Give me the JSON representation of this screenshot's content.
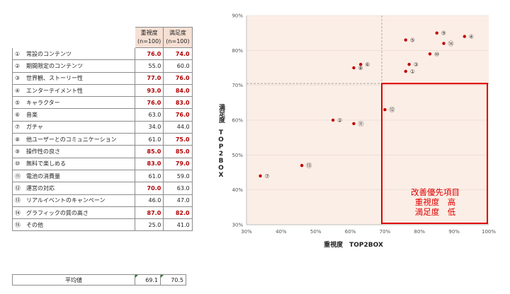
{
  "table": {
    "header": {
      "importance": "重視度",
      "importance_n": "(n=100)",
      "satisfaction": "満足度",
      "satisfaction_n": "(n=100)"
    },
    "rows": [
      {
        "no": "①",
        "label": "常設のコンテンツ",
        "importance": "76.0",
        "satisfaction": "74.0",
        "imp_hi": true,
        "sat_hi": true
      },
      {
        "no": "②",
        "label": "期間限定のコンテンツ",
        "importance": "55.0",
        "satisfaction": "60.0",
        "imp_hi": false,
        "sat_hi": false
      },
      {
        "no": "③",
        "label": "世界観、ストーリー性",
        "importance": "77.0",
        "satisfaction": "76.0",
        "imp_hi": true,
        "sat_hi": true
      },
      {
        "no": "④",
        "label": "エンターテイメント性",
        "importance": "93.0",
        "satisfaction": "84.0",
        "imp_hi": true,
        "sat_hi": true
      },
      {
        "no": "⑤",
        "label": "キャラクター",
        "importance": "76.0",
        "satisfaction": "83.0",
        "imp_hi": true,
        "sat_hi": true
      },
      {
        "no": "⑥",
        "label": "音楽",
        "importance": "63.0",
        "satisfaction": "76.0",
        "imp_hi": false,
        "sat_hi": true
      },
      {
        "no": "⑦",
        "label": "ガチャ",
        "importance": "34.0",
        "satisfaction": "44.0",
        "imp_hi": false,
        "sat_hi": false
      },
      {
        "no": "⑧",
        "label": "他ユーザーとのコミュニケーション",
        "importance": "61.0",
        "satisfaction": "75.0",
        "imp_hi": false,
        "sat_hi": true
      },
      {
        "no": "⑨",
        "label": "操作性の良さ",
        "importance": "85.0",
        "satisfaction": "85.0",
        "imp_hi": true,
        "sat_hi": true
      },
      {
        "no": "⑩",
        "label": "無料で楽しめる",
        "importance": "83.0",
        "satisfaction": "79.0",
        "imp_hi": true,
        "sat_hi": true
      },
      {
        "no": "⑪",
        "label": "電池の消費量",
        "importance": "61.0",
        "satisfaction": "59.0",
        "imp_hi": false,
        "sat_hi": false
      },
      {
        "no": "⑫",
        "label": "運営の対応",
        "importance": "70.0",
        "satisfaction": "63.0",
        "imp_hi": true,
        "sat_hi": false
      },
      {
        "no": "⑬",
        "label": "リアルイベントのキャンペーン",
        "importance": "46.0",
        "satisfaction": "47.0",
        "imp_hi": false,
        "sat_hi": false
      },
      {
        "no": "⑭",
        "label": "グラフィックの質の高さ",
        "importance": "87.0",
        "satisfaction": "82.0",
        "imp_hi": true,
        "sat_hi": true
      },
      {
        "no": "⑮",
        "label": "その他",
        "importance": "25.0",
        "satisfaction": "41.0",
        "imp_hi": false,
        "sat_hi": false
      }
    ],
    "average": {
      "label": "平均値",
      "importance": "69.1",
      "satisfaction": "70.5"
    }
  },
  "colors": {
    "highlight_text": "#b00000",
    "header_fill": "#f6e0d4",
    "plot_fill": "#fbeee6",
    "point": "#c00000",
    "priority_box": "#e00000"
  },
  "chart_data": {
    "type": "scatter",
    "xlabel": "重視度　TOP2BOX",
    "ylabel": "満足度　TOP2BOX",
    "xlim": [
      0.3,
      1.0
    ],
    "ylim": [
      0.3,
      0.9
    ],
    "x_ticks": [
      "30%",
      "40%",
      "50%",
      "60%",
      "70%",
      "80%",
      "90%",
      "100%"
    ],
    "y_ticks": [
      "30%",
      "40%",
      "50%",
      "60%",
      "70%",
      "80%",
      "90%"
    ],
    "reference_lines": {
      "x": 0.691,
      "y": 0.705
    },
    "priority_region": {
      "x": [
        0.691,
        1.0
      ],
      "y": [
        0.3,
        0.705
      ]
    },
    "priority_label": [
      "改善優先項目",
      "重視度　高",
      "満足度　低"
    ],
    "points": [
      {
        "label": "①",
        "x": 0.76,
        "y": 0.74
      },
      {
        "label": "②",
        "x": 0.55,
        "y": 0.6
      },
      {
        "label": "③",
        "x": 0.77,
        "y": 0.76
      },
      {
        "label": "④",
        "x": 0.93,
        "y": 0.84
      },
      {
        "label": "⑤",
        "x": 0.76,
        "y": 0.83
      },
      {
        "label": "⑥",
        "x": 0.63,
        "y": 0.76
      },
      {
        "label": "⑦",
        "x": 0.34,
        "y": 0.44
      },
      {
        "label": "⑧",
        "x": 0.61,
        "y": 0.75
      },
      {
        "label": "⑨",
        "x": 0.85,
        "y": 0.85
      },
      {
        "label": "⑩",
        "x": 0.83,
        "y": 0.79
      },
      {
        "label": "⑪",
        "x": 0.61,
        "y": 0.59
      },
      {
        "label": "⑫",
        "x": 0.7,
        "y": 0.63
      },
      {
        "label": "⑬",
        "x": 0.46,
        "y": 0.47
      },
      {
        "label": "⑭",
        "x": 0.87,
        "y": 0.82
      }
    ]
  }
}
